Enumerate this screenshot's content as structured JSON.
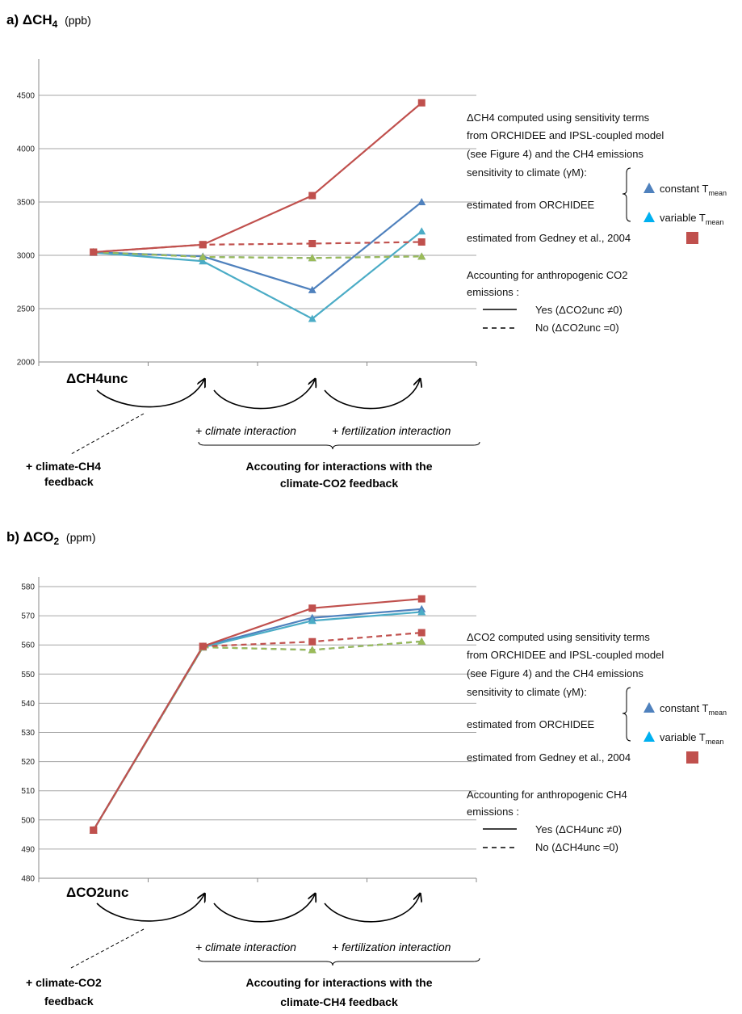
{
  "chart_data": [
    {
      "id": "a",
      "type": "line",
      "title": {
        "prefix": "a)",
        "symbol": "ΔCH",
        "sub": "4",
        "unit": "(ppb)"
      },
      "xlabel": "",
      "ylabel": "",
      "ylim": [
        2000,
        4750
      ],
      "yticks": [
        2000,
        2500,
        3000,
        3500,
        4000,
        4500
      ],
      "categories": [
        "ΔCH4unc",
        "+ climate-CH4 feedback",
        "+ climate interaction",
        "+ fertilization interaction"
      ],
      "series": [
        {
          "color": "#4f81bd",
          "dash": false,
          "marker": "triangle",
          "values": [
            3030,
            2990,
            2675,
            3500
          ]
        },
        {
          "color": "#4bacc6",
          "dash": false,
          "marker": "triangle",
          "values": [
            3025,
            2945,
            2405,
            3225
          ]
        },
        {
          "color": "#c0504d",
          "dash": false,
          "marker": "square",
          "values": [
            3030,
            3100,
            3560,
            4430
          ]
        },
        {
          "color": "#4f81bd",
          "dash": true,
          "marker": "triangle",
          "values": [
            3030,
            2985,
            2975,
            2990
          ]
        },
        {
          "color": "#9bbb59",
          "dash": true,
          "marker": "triangle",
          "values": [
            3030,
            2985,
            2975,
            2990
          ]
        },
        {
          "color": "#c0504d",
          "dash": true,
          "marker": "square",
          "values": [
            3030,
            3100,
            3110,
            3125
          ]
        }
      ],
      "legend": {
        "intro": [
          "ΔCH4 computed using sensitivity terms",
          "from ORCHIDEE and IPSL-coupled model",
          "(see Figure 4) and the CH4 emissions",
          "sensitivity to climate (γM):"
        ],
        "estimated_orchidee": "estimated from ORCHIDEE",
        "constant": "constant T",
        "variable": "variable T",
        "mean_sub": "mean",
        "estimated_gedney": "estimated from Gedney et al., 2004",
        "accounting": [
          "Accounting for anthropogenic CO2",
          "emissions :"
        ],
        "yes_label": "Yes (ΔCO2unc ≠0)",
        "no_label": "No (ΔCO2unc =0)"
      },
      "annotations": {
        "start_label": "ΔCH4unc",
        "feedback": [
          "+ climate-CH4",
          "feedback"
        ],
        "climate_interaction": "+ climate interaction",
        "fertilization_interaction": "+ fertilization interaction",
        "accounting": [
          "Accouting for interactions with the",
          "climate-CO2 feedback"
        ]
      }
    },
    {
      "id": "b",
      "type": "line",
      "title": {
        "prefix": "b)",
        "symbol": "ΔCO",
        "sub": "2",
        "unit": "(ppm)"
      },
      "xlabel": "",
      "ylabel": "",
      "ylim": [
        480,
        580
      ],
      "yticks": [
        480,
        490,
        500,
        510,
        520,
        530,
        540,
        550,
        560,
        570,
        580
      ],
      "categories": [
        "ΔCO2unc",
        "+ climate-CO2 feedback",
        "+ climate interaction",
        "+ fertilization interaction"
      ],
      "series": [
        {
          "color": "#4f81bd",
          "dash": false,
          "marker": "triangle",
          "values": [
            496.5,
            559.5,
            569.3,
            572.3
          ]
        },
        {
          "color": "#4bacc6",
          "dash": false,
          "marker": "triangle",
          "values": [
            496.5,
            559.2,
            568.3,
            571.3
          ]
        },
        {
          "color": "#c0504d",
          "dash": false,
          "marker": "square",
          "values": [
            496.5,
            559.5,
            572.6,
            575.8
          ]
        },
        {
          "color": "#4f81bd",
          "dash": true,
          "marker": "triangle",
          "values": [
            496.5,
            559.2,
            558.3,
            561.2
          ]
        },
        {
          "color": "#9bbb59",
          "dash": true,
          "marker": "triangle",
          "values": [
            496.5,
            559.2,
            558.3,
            561.2
          ]
        },
        {
          "color": "#c0504d",
          "dash": true,
          "marker": "square",
          "values": [
            496.5,
            559.5,
            561.1,
            564.2
          ]
        }
      ],
      "legend": {
        "intro": [
          "ΔCO2 computed using sensitivity terms",
          "from ORCHIDEE and IPSL-coupled model",
          "(see Figure 4) and the CH4 emissions",
          "sensitivity to climate (γM):"
        ],
        "estimated_orchidee": "estimated from ORCHIDEE",
        "constant": "constant T",
        "variable": "variable T",
        "mean_sub": "mean",
        "estimated_gedney": "estimated from Gedney et al., 2004",
        "accounting": [
          "Accounting for anthropogenic CH4",
          "emissions :"
        ],
        "yes_label": "Yes (ΔCH4unc ≠0)",
        "no_label": "No (ΔCH4unc =0)"
      },
      "annotations": {
        "start_label": "ΔCO2unc",
        "feedback": [
          "+ climate-CO2",
          "feedback"
        ],
        "climate_interaction": "+ climate interaction",
        "fertilization_interaction": "+ fertilization interaction",
        "accounting": [
          "Accouting for interactions with the",
          "climate-CH4 feedback"
        ]
      }
    }
  ],
  "colors": {
    "blue": "#4f81bd",
    "cyan": "#4bacc6",
    "red": "#c0504d",
    "green": "#9bbb59",
    "grid": "#a6a6a6"
  }
}
